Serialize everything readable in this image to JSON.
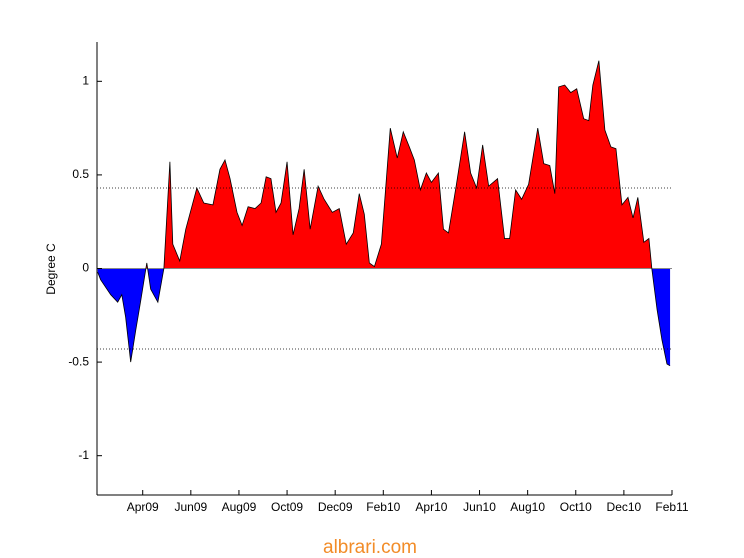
{
  "chart_data": {
    "type": "area",
    "y_label": "Degree C",
    "watermark": "albrari.com",
    "x": [
      1.13,
      1.25,
      1.67,
      1.96,
      2.13,
      2.29,
      2.5,
      2.71,
      2.92,
      3.17,
      3.33,
      3.63,
      3.88,
      4.13,
      4.25,
      4.54,
      4.79,
      5.25,
      5.54,
      5.92,
      6.21,
      6.42,
      6.63,
      6.92,
      7.13,
      7.38,
      7.67,
      7.92,
      8.13,
      8.33,
      8.54,
      8.75,
      9.0,
      9.25,
      9.5,
      9.71,
      9.96,
      10.29,
      10.54,
      10.88,
      11.17,
      11.46,
      11.75,
      12.0,
      12.21,
      12.42,
      12.63,
      12.92,
      13.29,
      13.58,
      13.83,
      14.08,
      14.29,
      14.54,
      14.79,
      15.0,
      15.29,
      15.5,
      15.71,
      16.04,
      16.38,
      16.63,
      16.88,
      17.13,
      17.38,
      17.75,
      18.04,
      18.25,
      18.5,
      18.75,
      19.04,
      19.42,
      19.67,
      19.92,
      20.13,
      20.29,
      20.54,
      20.79,
      21.04,
      21.33,
      21.54,
      21.71,
      21.96,
      22.21,
      22.46,
      22.67,
      22.92,
      23.17,
      23.38,
      23.58,
      23.83,
      24.04,
      24.17,
      24.38,
      24.58,
      24.79,
      24.92
    ],
    "values": [
      -0.02,
      -0.06,
      -0.14,
      -0.18,
      -0.14,
      -0.26,
      -0.5,
      -0.33,
      -0.17,
      0.03,
      -0.11,
      -0.18,
      0,
      0.57,
      0.13,
      0.04,
      0.21,
      0.43,
      0.35,
      0.34,
      0.53,
      0.58,
      0.48,
      0.3,
      0.23,
      0.33,
      0.32,
      0.35,
      0.49,
      0.48,
      0.3,
      0.35,
      0.57,
      0.18,
      0.32,
      0.53,
      0.21,
      0.44,
      0.37,
      0.3,
      0.32,
      0.13,
      0.19,
      0.4,
      0.29,
      0.03,
      0.01,
      0.13,
      0.75,
      0.59,
      0.73,
      0.65,
      0.58,
      0.42,
      0.51,
      0.46,
      0.51,
      0.21,
      0.19,
      0.45,
      0.73,
      0.51,
      0.43,
      0.66,
      0.44,
      0.48,
      0.16,
      0.16,
      0.42,
      0.37,
      0.45,
      0.75,
      0.56,
      0.55,
      0.4,
      0.97,
      0.98,
      0.94,
      0.96,
      0.8,
      0.79,
      0.98,
      1.11,
      0.74,
      0.65,
      0.64,
      0.34,
      0.38,
      0.27,
      0.38,
      0.14,
      0.16,
      -0.01,
      -0.22,
      -0.38,
      -0.51,
      -0.52
    ],
    "positive_color": "#ff0000",
    "negative_color": "#0000ff",
    "reference_lines": [
      0.43,
      -0.43
    ],
    "xlim": [
      1.1,
      25
    ],
    "xticks": [
      {
        "value": 3,
        "label": "Apr09"
      },
      {
        "value": 5,
        "label": "Jun09"
      },
      {
        "value": 7,
        "label": "Aug09"
      },
      {
        "value": 9,
        "label": "Oct09"
      },
      {
        "value": 11,
        "label": "Dec09"
      },
      {
        "value": 13,
        "label": "Feb10"
      },
      {
        "value": 15,
        "label": "Apr10"
      },
      {
        "value": 17,
        "label": "Jun10"
      },
      {
        "value": 19,
        "label": "Aug10"
      },
      {
        "value": 21,
        "label": "Oct10"
      },
      {
        "value": 23,
        "label": "Dec10"
      },
      {
        "value": 25,
        "label": "Feb11"
      }
    ],
    "ylim": [
      -1.21,
      1.21
    ],
    "yticks": [
      -1,
      -0.5,
      0,
      0.5,
      1
    ]
  }
}
